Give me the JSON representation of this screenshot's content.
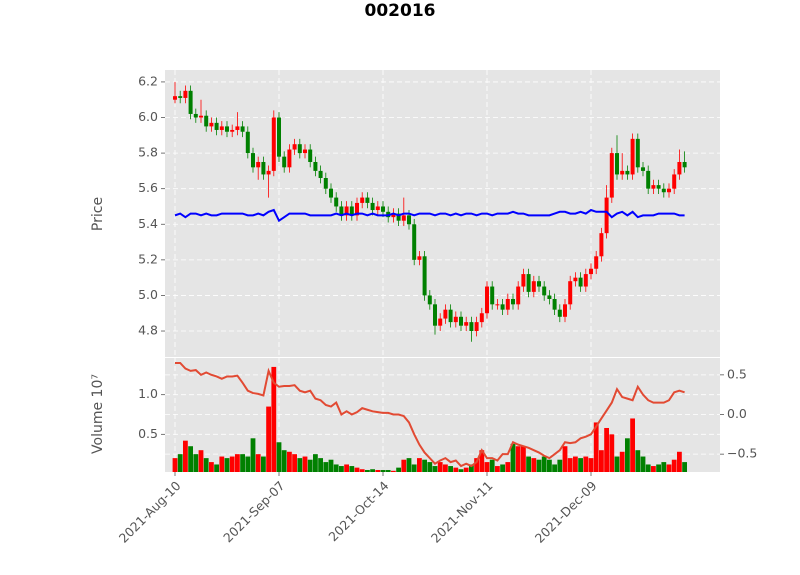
{
  "chart_data": {
    "type": "candlestick",
    "title": "002016",
    "ylabel": "Price",
    "up_color": "#ff0000",
    "down_color": "#008000",
    "grid": true,
    "categories": [
      "2021-Aug-10",
      null,
      null,
      null,
      null,
      null,
      null,
      null,
      null,
      null,
      null,
      null,
      null,
      null,
      null,
      null,
      null,
      null,
      null,
      null,
      "2021-Sep-07",
      null,
      null,
      null,
      null,
      null,
      null,
      null,
      null,
      null,
      null,
      null,
      null,
      null,
      null,
      null,
      null,
      null,
      null,
      null,
      "2021-Oct-14",
      null,
      null,
      null,
      null,
      null,
      null,
      null,
      null,
      null,
      null,
      null,
      null,
      null,
      null,
      null,
      null,
      null,
      null,
      null,
      "2021-Nov-11",
      null,
      null,
      null,
      null,
      null,
      null,
      null,
      null,
      null,
      null,
      null,
      null,
      null,
      null,
      null,
      null,
      null,
      null,
      null,
      "2021-Dec-09",
      null,
      null,
      null,
      null,
      null,
      null,
      null,
      null,
      null,
      null,
      null,
      null,
      null,
      null,
      null,
      null,
      null,
      null
    ],
    "open": [
      6.1,
      6.12,
      6.11,
      6.15,
      6.02,
      6.0,
      6.01,
      5.95,
      5.97,
      5.93,
      5.95,
      5.92,
      5.93,
      5.95,
      5.92,
      5.8,
      5.72,
      5.75,
      5.68,
      5.7,
      6.0,
      5.78,
      5.72,
      5.82,
      5.85,
      5.8,
      5.82,
      5.75,
      5.7,
      5.66,
      5.6,
      5.55,
      5.5,
      5.45,
      5.5,
      5.45,
      5.52,
      5.55,
      5.52,
      5.48,
      5.5,
      5.47,
      5.44,
      5.46,
      5.42,
      5.45,
      5.4,
      5.2,
      5.22,
      5.0,
      4.95,
      4.83,
      4.87,
      4.92,
      4.85,
      4.88,
      4.83,
      4.85,
      4.8,
      4.85,
      4.9,
      5.05,
      4.95,
      4.95,
      4.92,
      4.98,
      4.95,
      5.05,
      5.12,
      5.02,
      5.08,
      5.05,
      5.0,
      4.98,
      4.92,
      4.88,
      4.95,
      5.08,
      5.1,
      5.05,
      5.12,
      5.15,
      5.22,
      5.35,
      5.55,
      5.8,
      5.68,
      5.7,
      5.68,
      5.88,
      5.72,
      5.7,
      5.6,
      5.62,
      5.6,
      5.58,
      5.6,
      5.68,
      5.75
    ],
    "high": [
      6.2,
      6.15,
      6.18,
      6.18,
      6.05,
      6.1,
      6.04,
      6.0,
      6.0,
      5.98,
      5.98,
      5.96,
      6.03,
      5.98,
      5.95,
      5.83,
      5.78,
      5.78,
      5.73,
      6.04,
      6.03,
      5.81,
      5.85,
      5.88,
      5.88,
      5.85,
      5.85,
      5.78,
      5.73,
      5.69,
      5.63,
      5.58,
      5.53,
      5.53,
      5.53,
      5.55,
      5.58,
      5.58,
      5.55,
      5.53,
      5.53,
      5.5,
      5.49,
      5.49,
      5.55,
      5.48,
      5.43,
      5.25,
      5.25,
      5.03,
      4.98,
      4.9,
      4.95,
      4.95,
      4.91,
      4.91,
      4.88,
      4.88,
      4.88,
      4.93,
      5.08,
      5.08,
      4.98,
      4.98,
      5.01,
      5.01,
      5.08,
      5.15,
      5.15,
      5.11,
      5.11,
      5.08,
      5.03,
      5.01,
      4.95,
      4.98,
      5.11,
      5.13,
      5.13,
      5.15,
      5.18,
      5.25,
      5.38,
      5.62,
      5.83,
      5.9,
      5.8,
      5.73,
      5.91,
      5.91,
      5.75,
      5.73,
      5.65,
      5.65,
      5.63,
      5.63,
      5.71,
      5.82,
      5.81
    ],
    "low": [
      6.08,
      6.08,
      6.08,
      5.99,
      5.97,
      5.97,
      5.92,
      5.92,
      5.9,
      5.9,
      5.89,
      5.89,
      5.9,
      5.89,
      5.77,
      5.69,
      5.65,
      5.65,
      5.55,
      5.67,
      5.75,
      5.69,
      5.69,
      5.79,
      5.77,
      5.77,
      5.72,
      5.67,
      5.63,
      5.57,
      5.52,
      5.47,
      5.42,
      5.42,
      5.42,
      5.42,
      5.49,
      5.49,
      5.45,
      5.45,
      5.44,
      5.41,
      5.41,
      5.39,
      5.39,
      5.37,
      5.17,
      5.17,
      4.97,
      4.92,
      4.78,
      4.8,
      4.84,
      4.82,
      4.82,
      4.8,
      4.8,
      4.74,
      4.77,
      4.82,
      4.87,
      4.92,
      4.92,
      4.89,
      4.89,
      4.92,
      4.92,
      5.02,
      4.99,
      4.99,
      5.02,
      4.97,
      4.95,
      4.89,
      4.85,
      4.85,
      4.92,
      5.05,
      5.02,
      5.02,
      5.09,
      5.12,
      5.19,
      5.32,
      5.52,
      5.65,
      5.65,
      5.65,
      5.65,
      5.69,
      5.67,
      5.57,
      5.57,
      5.57,
      5.55,
      5.55,
      5.57,
      5.65,
      5.69
    ],
    "close": [
      6.12,
      6.11,
      6.15,
      6.02,
      6.0,
      6.01,
      5.95,
      5.97,
      5.93,
      5.95,
      5.92,
      5.93,
      5.95,
      5.92,
      5.8,
      5.72,
      5.75,
      5.68,
      5.7,
      6.0,
      5.78,
      5.72,
      5.82,
      5.85,
      5.8,
      5.82,
      5.75,
      5.7,
      5.66,
      5.6,
      5.55,
      5.5,
      5.45,
      5.5,
      5.45,
      5.52,
      5.55,
      5.52,
      5.48,
      5.5,
      5.47,
      5.44,
      5.46,
      5.42,
      5.45,
      5.4,
      5.2,
      5.22,
      5.0,
      4.95,
      4.83,
      4.87,
      4.92,
      4.85,
      4.88,
      4.83,
      4.85,
      4.8,
      4.85,
      4.9,
      5.05,
      4.95,
      4.95,
      4.92,
      4.98,
      4.95,
      5.05,
      5.12,
      5.02,
      5.08,
      5.05,
      5.0,
      4.98,
      4.92,
      4.88,
      4.95,
      5.08,
      5.1,
      5.05,
      5.12,
      5.15,
      5.22,
      5.35,
      5.55,
      5.8,
      5.68,
      5.7,
      5.68,
      5.88,
      5.72,
      5.7,
      5.6,
      5.62,
      5.6,
      5.58,
      5.6,
      5.68,
      5.75,
      5.72
    ],
    "ylim": [
      4.654,
      6.267
    ],
    "yticks": [
      4.8,
      {
        "value": 5.0,
        "label": "5.0"
      },
      5.2,
      5.4,
      5.6,
      5.8,
      {
        "value": 6.0,
        "label": "6.0"
      },
      6.2
    ],
    "overlay": {
      "color": "#0000ff",
      "values": [
        5.45,
        5.46,
        5.44,
        5.46,
        5.46,
        5.45,
        5.46,
        5.45,
        5.45,
        5.46,
        5.46,
        5.46,
        5.46,
        5.46,
        5.45,
        5.45,
        5.46,
        5.45,
        5.47,
        5.48,
        5.42,
        5.44,
        5.46,
        5.46,
        5.46,
        5.46,
        5.45,
        5.45,
        5.45,
        5.45,
        5.45,
        5.46,
        5.45,
        5.46,
        5.45,
        5.46,
        5.46,
        5.45,
        5.46,
        5.45,
        5.45,
        5.45,
        5.46,
        5.45,
        5.46,
        5.46,
        5.45,
        5.46,
        5.46,
        5.46,
        5.45,
        5.46,
        5.46,
        5.45,
        5.46,
        5.45,
        5.46,
        5.46,
        5.45,
        5.46,
        5.46,
        5.45,
        5.46,
        5.46,
        5.46,
        5.47,
        5.46,
        5.46,
        5.45,
        5.45,
        5.45,
        5.45,
        5.45,
        5.46,
        5.47,
        5.47,
        5.46,
        5.46,
        5.47,
        5.46,
        5.48,
        5.47,
        5.47,
        5.47,
        5.44,
        5.46,
        5.47,
        5.45,
        5.47,
        5.44,
        5.45,
        5.45,
        5.45,
        5.46,
        5.46,
        5.46,
        5.46,
        5.45,
        5.45
      ]
    },
    "volume": {
      "label": "Volume  10⁷",
      "ylim": [
        0.025,
        1.4625
      ],
      "yticks": [
        0.5,
        {
          "value": 1.0,
          "label": "1.0"
        }
      ],
      "values": [
        0.2,
        0.25,
        0.42,
        0.35,
        0.25,
        0.3,
        0.2,
        0.15,
        0.12,
        0.22,
        0.2,
        0.22,
        0.25,
        0.25,
        0.22,
        0.45,
        0.25,
        0.22,
        0.85,
        1.35,
        0.4,
        0.3,
        0.28,
        0.25,
        0.2,
        0.22,
        0.18,
        0.25,
        0.2,
        0.15,
        0.18,
        0.12,
        0.1,
        0.12,
        0.1,
        0.08,
        0.06,
        0.05,
        0.06,
        0.05,
        0.05,
        0.05,
        0.04,
        0.08,
        0.18,
        0.2,
        0.12,
        0.2,
        0.18,
        0.15,
        0.1,
        0.15,
        0.12,
        0.1,
        0.08,
        0.06,
        0.08,
        0.12,
        0.2,
        0.3,
        0.15,
        0.18,
        0.1,
        0.12,
        0.15,
        0.38,
        0.35,
        0.35,
        0.22,
        0.2,
        0.18,
        0.22,
        0.18,
        0.12,
        0.18,
        0.35,
        0.2,
        0.22,
        0.2,
        0.22,
        0.2,
        0.65,
        0.3,
        0.58,
        0.5,
        0.22,
        0.28,
        0.45,
        0.7,
        0.3,
        0.22,
        0.12,
        0.1,
        0.12,
        0.15,
        0.12,
        0.18,
        0.28,
        0.15
      ]
    },
    "y2lim": [
      -0.725,
      0.7125
    ],
    "y2ticks": [
      {
        "value": -0.5,
        "label": "−0.5"
      },
      {
        "value": 0.0,
        "label": "0.0"
      },
      0.5
    ],
    "volume_line": {
      "color": "#e24a33",
      "axis": "y2",
      "values": [
        0.65,
        0.65,
        0.58,
        0.55,
        0.56,
        0.5,
        0.53,
        0.5,
        0.48,
        0.45,
        0.48,
        0.48,
        0.49,
        0.4,
        0.3,
        0.27,
        0.26,
        0.24,
        0.55,
        0.4,
        0.35,
        0.36,
        0.36,
        0.37,
        0.3,
        0.28,
        0.3,
        0.2,
        0.18,
        0.12,
        0.1,
        0.15,
        0.0,
        0.04,
        0.0,
        0.03,
        0.08,
        0.06,
        0.04,
        0.03,
        0.02,
        0.02,
        0.0,
        0.0,
        -0.02,
        -0.1,
        -0.25,
        -0.38,
        -0.48,
        -0.55,
        -0.62,
        -0.58,
        -0.55,
        -0.6,
        -0.58,
        -0.65,
        -0.62,
        -0.65,
        -0.6,
        -0.45,
        -0.55,
        -0.55,
        -0.58,
        -0.5,
        -0.5,
        -0.35,
        -0.38,
        -0.4,
        -0.42,
        -0.45,
        -0.48,
        -0.52,
        -0.55,
        -0.5,
        -0.45,
        -0.35,
        -0.36,
        -0.35,
        -0.3,
        -0.28,
        -0.25,
        -0.15,
        -0.05,
        0.05,
        0.15,
        0.32,
        0.22,
        0.2,
        0.18,
        0.35,
        0.25,
        0.18,
        0.15,
        0.15,
        0.15,
        0.18,
        0.28,
        0.3,
        0.28
      ]
    }
  }
}
